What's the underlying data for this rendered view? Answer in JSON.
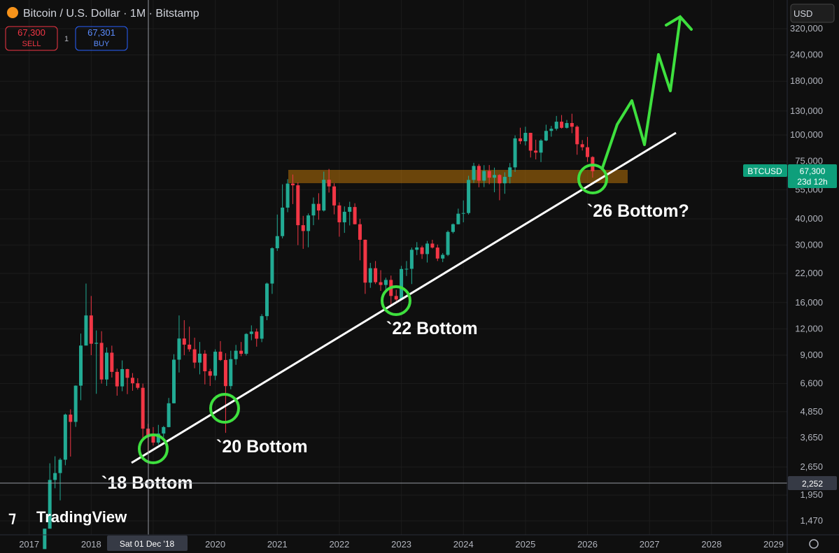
{
  "ui": {
    "symbol": "Bitcoin / U.S. Dollar · 1M · Bitstamp",
    "sell_price": "67,300",
    "sell": "SELL",
    "quantity": "1",
    "buy_price": "67,301",
    "buy": "BUY",
    "currency": "USD",
    "ticker": "BTCUSD",
    "last_price": "67,300",
    "countdown": "23d 12h",
    "crosshair_price": "2,252",
    "crosshair_date": "Sat 01 Dec '18",
    "brand": "TradingView"
  },
  "chart_data": {
    "type": "candlestick",
    "log_scale": true,
    "grid": true,
    "up_color": "#22ab94",
    "down_color": "#f23645",
    "annotations": [
      "`18 Bottom",
      "`20 Bottom",
      "`22 Bottom",
      "`26 Bottom?"
    ],
    "xlim": [
      2016.53,
      2029.22
    ],
    "xticks": [
      2017,
      2018,
      2019,
      2020,
      2021,
      2022,
      2023,
      2024,
      2025,
      2026,
      2027,
      2028,
      2029
    ],
    "ylim": [
      1262,
      437800
    ],
    "yticks": [
      {
        "value": 1470,
        "label": "1,470"
      },
      {
        "value": 1950,
        "label": "1,950"
      },
      {
        "value": 2650,
        "label": "2,650"
      },
      {
        "value": 3650,
        "label": "3,650"
      },
      {
        "value": 4850,
        "label": "4,850"
      },
      {
        "value": 6600,
        "label": "6,600"
      },
      {
        "value": 9000,
        "label": "9,000"
      },
      {
        "value": 12000,
        "label": "12,000"
      },
      {
        "value": 16000,
        "label": "16,000"
      },
      {
        "value": 22000,
        "label": "22,000"
      },
      {
        "value": 30000,
        "label": "30,000"
      },
      {
        "value": 40000,
        "label": "40,000"
      },
      {
        "value": 55000,
        "label": "55,000"
      },
      {
        "value": 75000,
        "label": "75,000"
      },
      {
        "value": 100000,
        "label": "100,000"
      },
      {
        "value": 130000,
        "label": "130,000"
      },
      {
        "value": 180000,
        "label": "180,000"
      },
      {
        "value": 240000,
        "label": "240,000"
      },
      {
        "value": 320000,
        "label": "320,000"
      }
    ],
    "x": [
      2017.25,
      2017.333,
      2017.417,
      2017.5,
      2017.583,
      2017.667,
      2017.75,
      2017.833,
      2017.917,
      2018,
      2018.083,
      2018.167,
      2018.25,
      2018.333,
      2018.417,
      2018.5,
      2018.583,
      2018.667,
      2018.75,
      2018.833,
      2018.917,
      2019,
      2019.083,
      2019.167,
      2019.25,
      2019.333,
      2019.417,
      2019.5,
      2019.583,
      2019.667,
      2019.75,
      2019.833,
      2019.917,
      2020,
      2020.083,
      2020.167,
      2020.25,
      2020.333,
      2020.417,
      2020.5,
      2020.583,
      2020.667,
      2020.75,
      2020.833,
      2020.917,
      2021,
      2021.083,
      2021.167,
      2021.25,
      2021.333,
      2021.417,
      2021.5,
      2021.583,
      2021.667,
      2021.75,
      2021.833,
      2021.917,
      2022,
      2022.083,
      2022.167,
      2022.25,
      2022.333,
      2022.417,
      2022.5,
      2022.583,
      2022.667,
      2022.75,
      2022.833,
      2022.917,
      2023,
      2023.083,
      2023.167,
      2023.25,
      2023.333,
      2023.417,
      2023.5,
      2023.583,
      2023.667,
      2023.75,
      2023.833,
      2023.917,
      2024,
      2024.083,
      2024.167,
      2024.25,
      2024.333,
      2024.417,
      2024.5,
      2024.583,
      2024.667,
      2024.75,
      2024.833,
      2024.917,
      2025,
      2025.083,
      2025.167,
      2025.25,
      2025.333,
      2025.417,
      2025.5,
      2025.583,
      2025.667,
      2025.75,
      2025.833,
      2025.917,
      2026,
      2026.083
    ],
    "open": [
      1080,
      1350,
      2300,
      2480,
      2870,
      4700,
      4340,
      6450,
      10000,
      13900,
      10200,
      10300,
      6900,
      9250,
      7500,
      6400,
      7730,
      7030,
      6620,
      6300,
      4030,
      3740,
      3460,
      3820,
      4100,
      5320,
      8570,
      10800,
      10100,
      9600,
      8300,
      9150,
      7550,
      7190,
      9350,
      8540,
      6420,
      8620,
      9450,
      9140,
      11350,
      11650,
      10780,
      13800,
      19700,
      28990,
      33100,
      45200,
      58800,
      57700,
      37300,
      35000,
      41500,
      47100,
      43800,
      61300,
      57000,
      46300,
      38500,
      43200,
      45500,
      37700,
      31800,
      19900,
      23300,
      20000,
      19400,
      20500,
      17200,
      16550,
      23100,
      23150,
      28500,
      29250,
      27200,
      30500,
      29200,
      25900,
      26970,
      34650,
      37700,
      42300,
      42600,
      61200,
      71300,
      60700,
      67500,
      62700,
      64600,
      58950,
      63300,
      70200,
      96400,
      93400,
      102400,
      84300,
      82500,
      94200,
      104600,
      107100,
      115700,
      108200,
      114000,
      109500,
      90400,
      87500,
      78600
    ],
    "high": [
      1350,
      2760,
      2980,
      2920,
      4750,
      4980,
      6470,
      11400,
      19700,
      17200,
      11800,
      11700,
      9800,
      9990,
      7770,
      8500,
      7760,
      7400,
      7000,
      6600,
      4250,
      4100,
      4200,
      4150,
      5640,
      9100,
      13900,
      13200,
      12300,
      10900,
      10400,
      9510,
      7750,
      9600,
      10500,
      9200,
      9450,
      10070,
      10400,
      11450,
      12470,
      12050,
      14100,
      19900,
      29300,
      41900,
      58300,
      61700,
      64900,
      59500,
      41300,
      42400,
      50500,
      52900,
      67000,
      69000,
      59000,
      47900,
      45800,
      48200,
      47400,
      40000,
      31900,
      24700,
      25200,
      22800,
      21000,
      21500,
      18400,
      23900,
      25200,
      29200,
      31000,
      29800,
      31400,
      31800,
      30200,
      27500,
      35200,
      38000,
      44700,
      48900,
      64000,
      73800,
      72800,
      71900,
      72000,
      70000,
      65100,
      66500,
      73600,
      99600,
      108300,
      109500,
      102500,
      95000,
      95700,
      111900,
      110500,
      123200,
      124400,
      117900,
      126200,
      111200,
      94600,
      97900,
      79300
    ],
    "low": [
      1080,
      1350,
      2100,
      1840,
      2700,
      2970,
      4110,
      5500,
      10900,
      9000,
      5900,
      6600,
      6430,
      7050,
      5780,
      6070,
      5880,
      6100,
      6180,
      3650,
      3130,
      3350,
      3380,
      3670,
      4090,
      5310,
      7450,
      9000,
      9350,
      7800,
      7300,
      6540,
      6430,
      6850,
      8450,
      3850,
      6200,
      8100,
      8900,
      8970,
      10600,
      9880,
      10380,
      13200,
      17600,
      28150,
      32300,
      43000,
      47000,
      30000,
      28800,
      29300,
      37300,
      39600,
      43300,
      53300,
      42000,
      32900,
      34300,
      37200,
      37600,
      25400,
      17600,
      18800,
      19600,
      18200,
      18200,
      15500,
      16300,
      16500,
      21400,
      19600,
      26900,
      25800,
      24800,
      28900,
      25200,
      24900,
      26600,
      34100,
      37600,
      38500,
      41900,
      59200,
      56500,
      56600,
      58400,
      53500,
      49000,
      52600,
      58900,
      66800,
      90500,
      89200,
      78200,
      76600,
      74400,
      93400,
      98200,
      105100,
      107300,
      107300,
      102000,
      80600,
      84400,
      74500,
      62800
    ],
    "close": [
      1350,
      2300,
      2480,
      2870,
      4700,
      4340,
      6450,
      10000,
      13900,
      10200,
      10300,
      6900,
      9250,
      7500,
      6400,
      7730,
      7030,
      6620,
      6300,
      4030,
      3740,
      3460,
      3820,
      4100,
      5320,
      8570,
      10800,
      10100,
      9600,
      8300,
      9150,
      7550,
      7190,
      9350,
      8540,
      6420,
      8620,
      9450,
      9140,
      11350,
      11650,
      10780,
      13800,
      19700,
      28990,
      33100,
      45200,
      58800,
      57700,
      37300,
      35000,
      41500,
      47100,
      43800,
      61300,
      57000,
      46300,
      38500,
      43200,
      45500,
      37700,
      31800,
      19900,
      23300,
      20000,
      19400,
      20500,
      17200,
      16550,
      23100,
      23150,
      28500,
      29250,
      27200,
      30500,
      29200,
      25900,
      26970,
      34650,
      37700,
      42300,
      42600,
      61200,
      71300,
      60700,
      67500,
      62700,
      64600,
      58950,
      63300,
      70200,
      96400,
      93400,
      102400,
      84300,
      82500,
      94200,
      104600,
      107100,
      115700,
      108200,
      114000,
      109500,
      90400,
      87500,
      78600,
      67300
    ]
  }
}
